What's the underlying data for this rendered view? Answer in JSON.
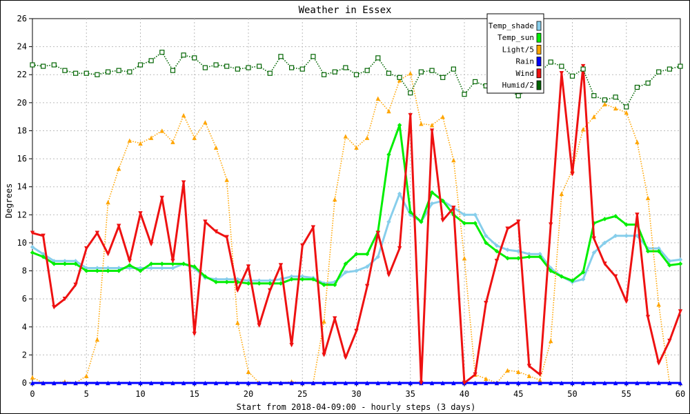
{
  "chart_data": {
    "type": "line",
    "title": "Weather in Essex",
    "xlabel": "Start from 2018-04-09:00 - hourly steps (3 days)",
    "ylabel": "Degrees",
    "xlim": [
      0,
      60
    ],
    "ylim": [
      0,
      26
    ],
    "x_ticks": [
      0,
      5,
      10,
      15,
      20,
      25,
      30,
      35,
      40,
      45,
      50,
      55,
      60
    ],
    "y_ticks": [
      0,
      2,
      4,
      6,
      8,
      10,
      12,
      14,
      16,
      18,
      20,
      22,
      24,
      26
    ],
    "grid": true,
    "legend_position": "top-right",
    "series": [
      {
        "name": "Temp_shade",
        "color": "#87ceeb",
        "line_style": "solid",
        "marker": "diamond",
        "values": [
          9.7,
          9.2,
          8.7,
          8.7,
          8.7,
          8.2,
          8.2,
          8.2,
          8.2,
          8.2,
          8.2,
          8.2,
          8.2,
          8.2,
          8.5,
          8.2,
          7.5,
          7.4,
          7.4,
          7.4,
          7.3,
          7.3,
          7.3,
          7.4,
          7.6,
          7.6,
          7.5,
          7.1,
          7.2,
          7.9,
          8.0,
          8.3,
          9.0,
          11.5,
          13.5,
          12.0,
          11.5,
          12.8,
          13.0,
          12.5,
          12.0,
          12.0,
          10.5,
          9.8,
          9.5,
          9.4,
          9.2,
          9.2,
          8.2,
          7.6,
          7.2,
          7.4,
          9.3,
          10.0,
          10.5,
          10.5,
          10.5,
          9.6,
          9.6,
          8.7,
          8.8
        ]
      },
      {
        "name": "Temp_sun",
        "color": "#00ee00",
        "line_style": "solid",
        "marker": "diamond",
        "values": [
          9.3,
          9.0,
          8.5,
          8.5,
          8.5,
          8.0,
          8.0,
          8.0,
          8.0,
          8.4,
          8.0,
          8.5,
          8.5,
          8.5,
          8.5,
          8.3,
          7.6,
          7.2,
          7.2,
          7.2,
          7.1,
          7.1,
          7.1,
          7.1,
          7.4,
          7.4,
          7.4,
          7.0,
          7.0,
          8.5,
          9.2,
          9.2,
          10.8,
          16.3,
          18.4,
          12.2,
          11.5,
          13.6,
          13.0,
          12.0,
          11.4,
          11.4,
          10.0,
          9.4,
          8.9,
          8.9,
          9.0,
          9.0,
          8.0,
          7.6,
          7.3,
          7.9,
          11.4,
          11.7,
          11.9,
          11.3,
          11.3,
          9.4,
          9.4,
          8.4,
          8.5
        ]
      },
      {
        "name": "Light/5",
        "color": "#ffa500",
        "line_style": "dotted",
        "marker": "triangle-up",
        "values": [
          0.4,
          0,
          0,
          0.1,
          0,
          0.5,
          3.1,
          12.9,
          15.3,
          17.3,
          17.1,
          17.5,
          18.0,
          17.2,
          19.1,
          17.5,
          18.6,
          16.8,
          14.5,
          4.3,
          0.8,
          0,
          0,
          0,
          0.1,
          0,
          0,
          4.4,
          13.1,
          17.6,
          16.8,
          17.5,
          20.3,
          19.4,
          21.6,
          22.1,
          18.5,
          18.4,
          19.0,
          15.9,
          8.9,
          0.6,
          0.3,
          0,
          0.9,
          0.8,
          0.5,
          0.2,
          3.0,
          13.5,
          15.2,
          18.1,
          19.0,
          19.9,
          19.6,
          19.3,
          17.2,
          13.2,
          5.6,
          0,
          0
        ]
      },
      {
        "name": "Rain",
        "color": "#0000ff",
        "line_style": "solid",
        "marker": "triangle-up",
        "values": [
          0,
          0,
          0,
          0,
          0,
          0,
          0,
          0,
          0,
          0,
          0,
          0,
          0,
          0,
          0,
          0,
          0,
          0,
          0,
          0,
          0,
          0,
          0,
          0,
          0,
          0,
          0,
          0,
          0,
          0,
          0,
          0,
          0,
          0,
          0,
          0,
          0,
          0,
          0,
          0,
          0,
          0,
          0,
          0,
          0,
          0,
          0,
          0,
          0,
          0,
          0,
          0,
          0,
          0,
          0,
          0,
          0,
          0,
          0,
          0,
          0
        ]
      },
      {
        "name": "Wind",
        "color": "#ee1111",
        "line_style": "solid",
        "marker": "triangle-down",
        "values": [
          10.7,
          10.5,
          5.4,
          6.0,
          7.0,
          9.6,
          10.7,
          9.2,
          11.2,
          8.7,
          12.1,
          9.9,
          13.2,
          8.7,
          14.3,
          3.5,
          11.5,
          10.8,
          10.4,
          6.6,
          8.3,
          4.1,
          6.6,
          8.4,
          2.7,
          9.8,
          11.1,
          2.0,
          4.6,
          1.8,
          3.7,
          6.9,
          10.7,
          7.7,
          9.6,
          19.1,
          0,
          18.0,
          11.6,
          12.5,
          0,
          0.6,
          5.7,
          8.7,
          11.0,
          11.5,
          1.2,
          0.6,
          11.3,
          22.1,
          14.9,
          22.6,
          10.3,
          8.5,
          7.6,
          5.8,
          12.0,
          4.7,
          1.4,
          3.0,
          5.1
        ]
      },
      {
        "name": "Humid/2",
        "color": "#006400",
        "line_style": "dotted",
        "marker": "square",
        "values": [
          22.7,
          22.6,
          22.7,
          22.3,
          22.1,
          22.1,
          22.0,
          22.2,
          22.3,
          22.2,
          22.7,
          23.0,
          23.6,
          22.3,
          23.4,
          23.2,
          22.5,
          22.7,
          22.6,
          22.4,
          22.5,
          22.6,
          22.1,
          23.3,
          22.5,
          22.4,
          23.3,
          22.0,
          22.2,
          22.5,
          22.0,
          22.3,
          23.2,
          22.1,
          21.8,
          20.7,
          22.2,
          22.3,
          21.8,
          22.4,
          20.6,
          21.5,
          21.2,
          21.1,
          20.9,
          20.5,
          21.0,
          22.2,
          22.9,
          22.6,
          21.9,
          22.4,
          20.5,
          20.2,
          20.4,
          19.7,
          21.1,
          21.4,
          22.2,
          22.4,
          22.6
        ]
      }
    ]
  }
}
